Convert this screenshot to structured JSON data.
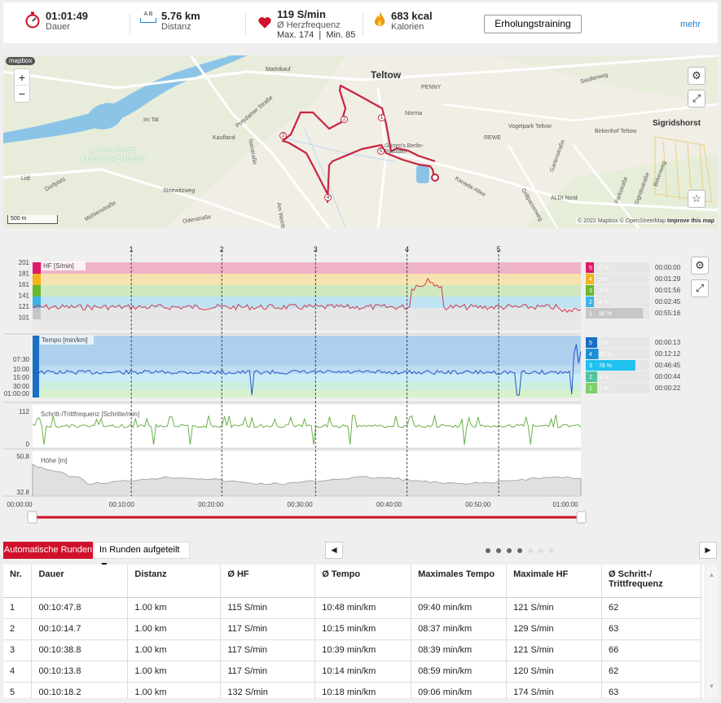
{
  "summary": {
    "duration": {
      "value": "01:01:49",
      "label": "Dauer"
    },
    "distance": {
      "icon_letters": "A B",
      "value": "5.76 km",
      "label": "Distanz"
    },
    "heart": {
      "value": "119 S/min",
      "label": "Ø Herzfrequenz",
      "sub": "Max. 174  |  Min. 85"
    },
    "calories": {
      "value": "683 kcal",
      "label": "Kalorien"
    },
    "training_button": "Erholungstraining",
    "more_link": "mehr"
  },
  "map": {
    "places": [
      "Teltow",
      "Sigridshorst",
      "ALTES DORF KLEINMACHNOW",
      "Marktkauf",
      "PENNY",
      "Norma",
      "Grimm's Berlin-Potsdam",
      "REWE",
      "Vogelpark Teltow",
      "Birkenhof Teltow",
      "ALDI Nord",
      "Kaufland",
      "Lidl",
      "Im Tal",
      "Potsdamer Straße",
      "Striewitzweg",
      "Siedlerweg",
      "Kanada-Allee",
      "Dorfplatz",
      "Mühlenstraße",
      "Iserstraße",
      "Oderstraße",
      "Gartenstraße",
      "Parkstraße",
      "Sigridsstraße",
      "Birkenweg",
      "Grillparzerweg",
      "Am Weinberg"
    ],
    "route_markers": [
      "1",
      "2",
      "3",
      "4",
      "5"
    ],
    "scale": "500 m",
    "attribution": "© 2022 Mapbox © OpenStreetMap",
    "improve": "Improve this map",
    "logo": "mapbox",
    "zoom_in": "+",
    "zoom_out": "−"
  },
  "charts": {
    "lap_markers": [
      "1",
      "2",
      "3",
      "4",
      "5"
    ],
    "hr": {
      "label": "HF [S/min]",
      "ticks": [
        "201",
        "181",
        "161",
        "141",
        "121",
        "101"
      ],
      "zones": [
        {
          "zone": "5",
          "pct": "0 %",
          "time": "00:00:00",
          "color": "#e0186c",
          "band": "#eeb3c8",
          "fraction": 0.0
        },
        {
          "zone": "4",
          "pct": "2 %",
          "time": "00:01:29",
          "color": "#f5b21a",
          "band": "#f6e3b0",
          "fraction": 0.02
        },
        {
          "zone": "3",
          "pct": "3 %",
          "time": "00:01:56",
          "color": "#6ab82e",
          "band": "#cfe8c0",
          "fraction": 0.03
        },
        {
          "zone": "2",
          "pct": "4 %",
          "time": "00:02:45",
          "color": "#3db4e5",
          "band": "#bfe3f2",
          "fraction": 0.04
        },
        {
          "zone": "1",
          "pct": "90 %",
          "time": "00:55:16",
          "color": "#c6c6c6",
          "band": "#e6e6e6",
          "fraction": 0.9
        }
      ]
    },
    "pace": {
      "label": "Tempo [min/km]",
      "ticks": [
        "07:30",
        "10:00",
        "15:00",
        "30:00",
        "01:00:00"
      ],
      "zones": [
        {
          "zone": "5",
          "pct": "0 %",
          "time": "00:00:13",
          "color": "#1a6fc4",
          "band": "#aed0ee",
          "fraction": 0.0
        },
        {
          "zone": "4",
          "pct": "20 %",
          "time": "00:12:12",
          "color": "#1d8fd8",
          "band": "#c0dcf2",
          "fraction": 0.2
        },
        {
          "zone": "3",
          "pct": "78 %",
          "time": "00:46:45",
          "color": "#1fc1ee",
          "band": "#c9ecf6",
          "fraction": 0.78
        },
        {
          "zone": "2",
          "pct": "1 %",
          "time": "00:00:44",
          "color": "#52c3a0",
          "band": "#cdeede",
          "fraction": 0.01
        },
        {
          "zone": "1",
          "pct": "1 %",
          "time": "00:00:22",
          "color": "#7fcf6a",
          "band": "#d7f1cc",
          "fraction": 0.01
        }
      ]
    },
    "cadence": {
      "label": "Schritt-/Trittfrequenz [Schritte/min]",
      "ticks": [
        "112",
        "0"
      ]
    },
    "altitude": {
      "label": "Höhe [m]",
      "ticks": [
        "50.8",
        "32.8"
      ]
    },
    "x_ticks": [
      "00:00:00",
      "00:10:00",
      "00:20:00",
      "00:30:00",
      "00:40:00",
      "00:50:00",
      "01:00:00"
    ]
  },
  "laps": {
    "auto_button": "Automatische Runden",
    "split_select": "In Runden aufgeteilt",
    "prev": "◄",
    "next": "►",
    "columns": [
      "Nr.",
      "Dauer",
      "Distanz",
      "Ø HF",
      "Ø Tempo",
      "Maximales Tempo",
      "Maximale HF",
      "Ø Schritt-/ Trittfrequenz"
    ],
    "rows": [
      [
        "1",
        "00:10:47.8",
        "1.00 km",
        "115 S/min",
        "10:48 min/km",
        "09:40 min/km",
        "121 S/min",
        "62"
      ],
      [
        "2",
        "00:10:14.7",
        "1.00 km",
        "117 S/min",
        "10:15 min/km",
        "08:37 min/km",
        "129 S/min",
        "63"
      ],
      [
        "3",
        "00:10:38.8",
        "1.00 km",
        "117 S/min",
        "10:39 min/km",
        "08:39 min/km",
        "121 S/min",
        "66"
      ],
      [
        "4",
        "00:10:13.8",
        "1.00 km",
        "117 S/min",
        "10:14 min/km",
        "08:59 min/km",
        "120 S/min",
        "62"
      ],
      [
        "5",
        "00:10:18.2",
        "1.00 km",
        "132 S/min",
        "10:18 min/km",
        "09:06 min/km",
        "174 S/min",
        "63"
      ]
    ]
  },
  "colors": {
    "accent": "#d0102b",
    "hr_line": "#d23a4f",
    "pace_line": "#2255c8",
    "cadence_line": "#6ab04c",
    "route": "#c8243f",
    "link": "#1a7fd6"
  }
}
